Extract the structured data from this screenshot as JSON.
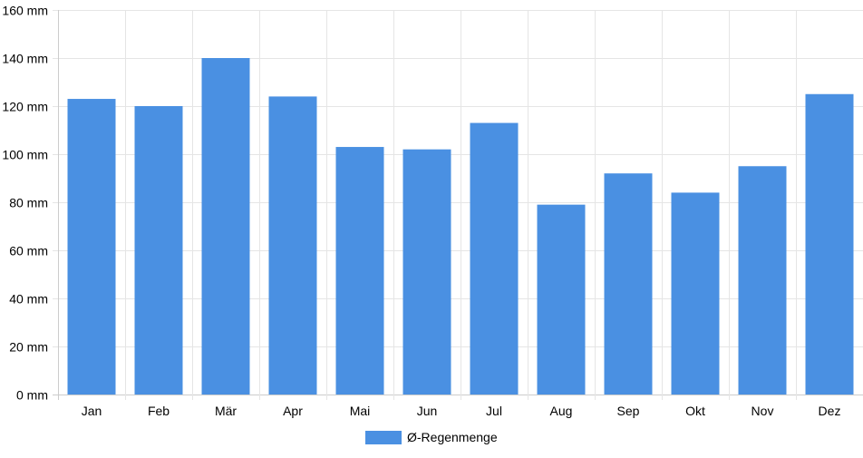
{
  "chart_data": {
    "type": "bar",
    "categories": [
      "Jan",
      "Feb",
      "Mär",
      "Apr",
      "Mai",
      "Jun",
      "Jul",
      "Aug",
      "Sep",
      "Okt",
      "Nov",
      "Dez"
    ],
    "series": [
      {
        "name": "Ø-Regenmenge",
        "values": [
          123,
          120,
          140,
          124,
          103,
          102,
          113,
          79,
          92,
          84,
          95,
          125
        ]
      }
    ],
    "ylim": [
      0,
      160
    ],
    "y_ticks": [
      0,
      20,
      40,
      60,
      80,
      100,
      120,
      140,
      160
    ],
    "y_unit": "mm",
    "grid": true,
    "legend_position": "bottom",
    "colors": {
      "bar": "#4a90e2",
      "grid": "#e5e5e5",
      "axis": "#cccccc",
      "text": "#000000"
    }
  }
}
